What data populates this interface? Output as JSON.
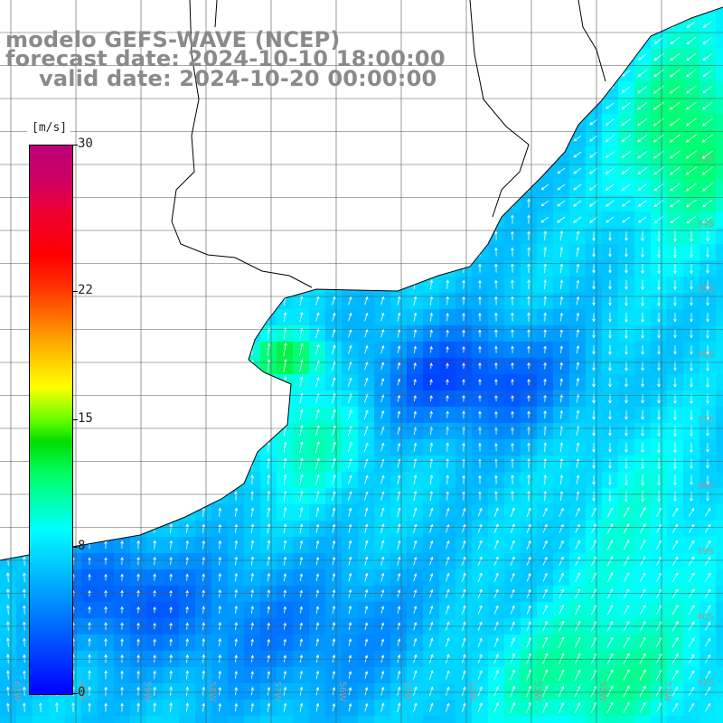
{
  "title": {
    "line1": "modelo GEFS-WAVE (NCEP)",
    "line2": "forecast date: 2024-10-10 18:00:00",
    "line3": "valid date: 2024-10-20 00:00:00"
  },
  "colorbar": {
    "unit": "[m/s]",
    "ticks": [
      "30",
      "22",
      "15",
      "8",
      "0"
    ],
    "tick_values": [
      30,
      22,
      15,
      8,
      0
    ],
    "min": 0,
    "max": 30
  },
  "lat_labels": [
    "33S",
    "34S",
    "35S",
    "36S",
    "37S",
    "38S",
    "39S",
    "40S",
    "41S"
  ],
  "lon_labels": [
    "61W",
    "60W",
    "59W",
    "58W",
    "57W",
    "56W",
    "55W",
    "54W",
    "53W",
    "52W",
    "51W"
  ],
  "field": {
    "variable": "wind speed (m/s) with direction arrows",
    "colors": {
      "calm": "#0000ff",
      "low": "#0077ff",
      "moderate": "#00ddff",
      "fresh": "#00ff66",
      "land": "#ffffff"
    }
  }
}
